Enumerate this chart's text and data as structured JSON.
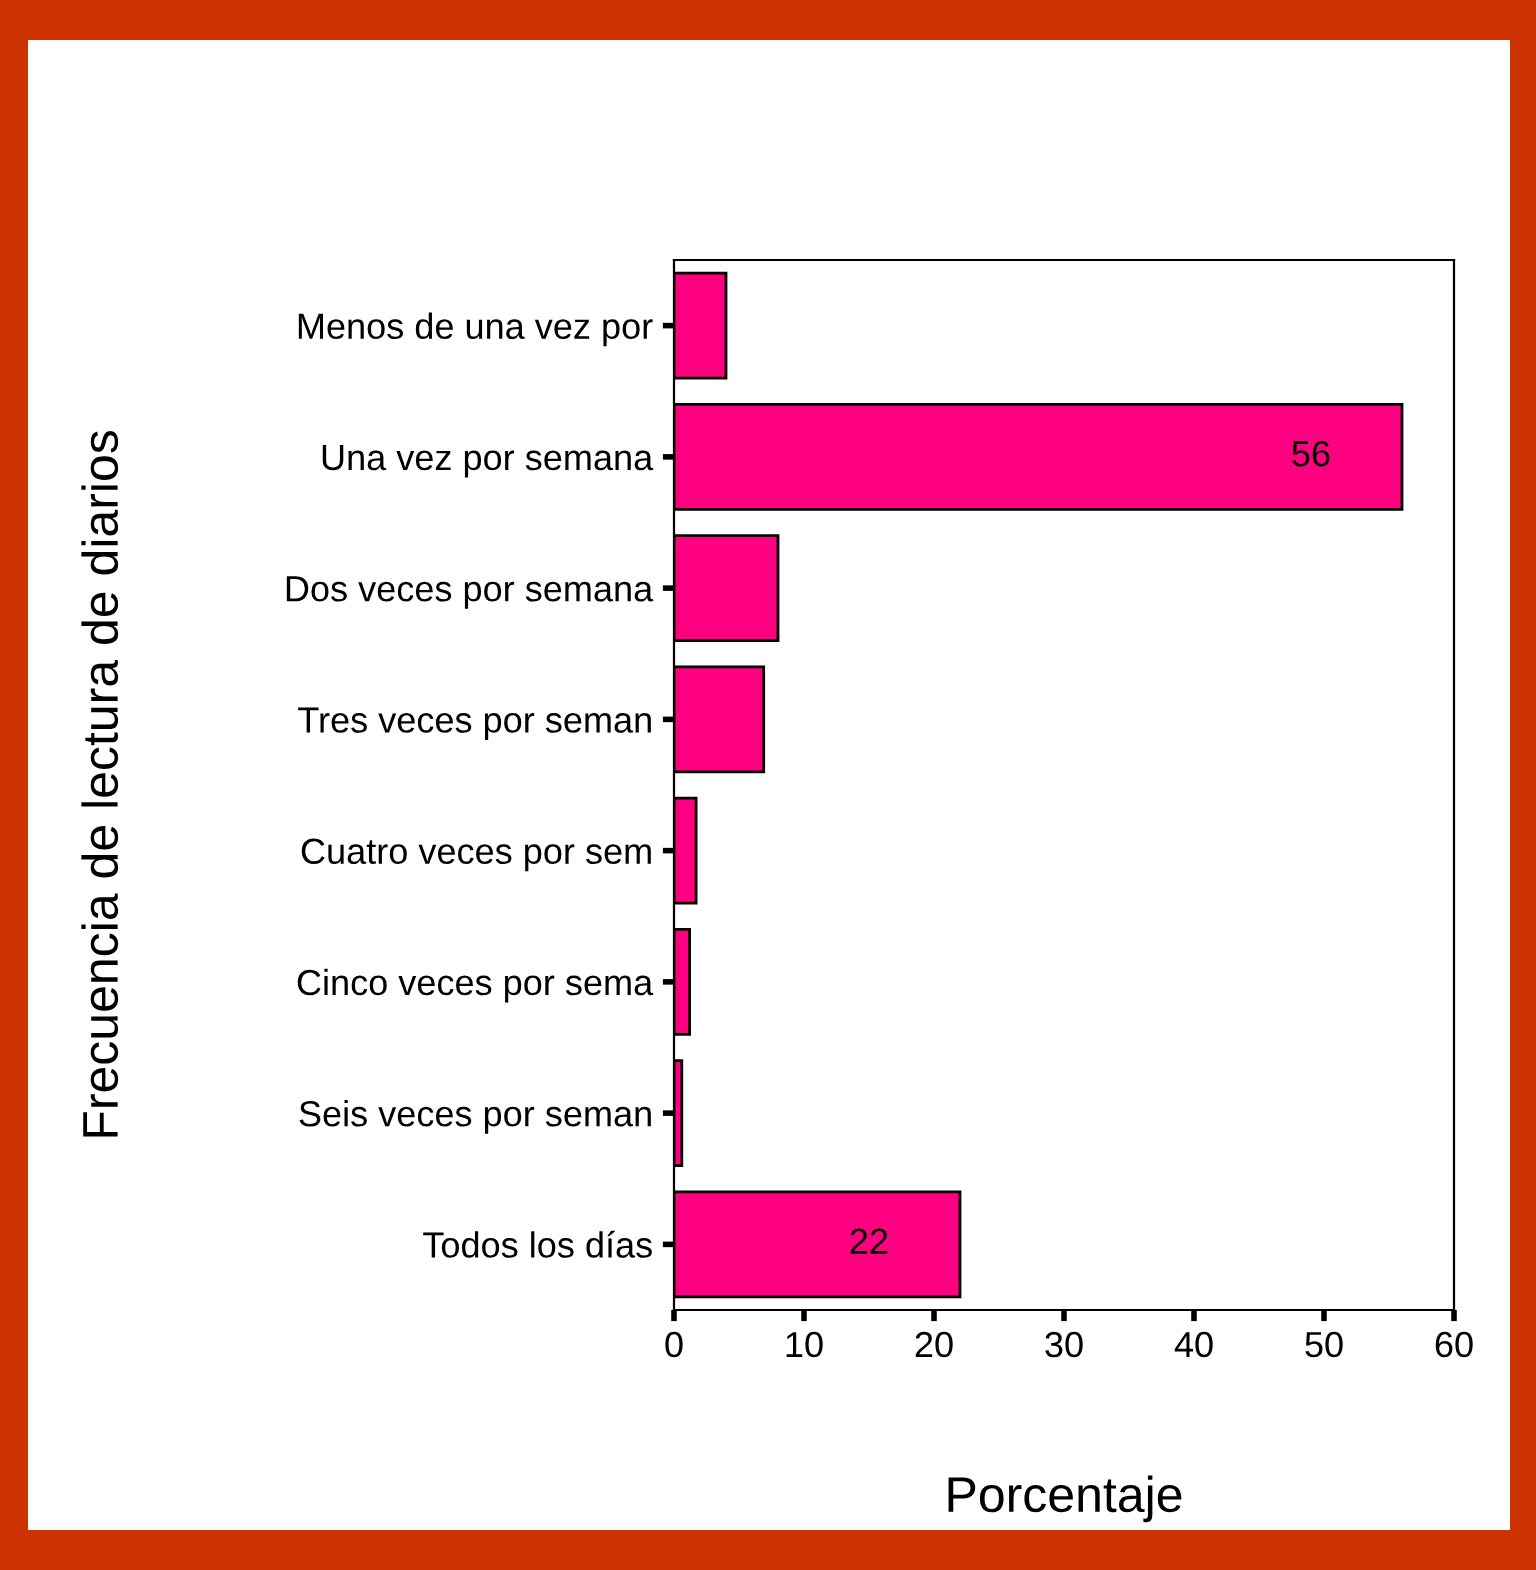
{
  "chart_data": {
    "type": "bar",
    "orientation": "horizontal",
    "xlabel": "Porcentaje",
    "ylabel": "Frecuencia de lectura de diarios",
    "categories": [
      "Menos de una vez por",
      "Una vez por semana",
      "Dos veces por semana",
      "Tres veces por seman",
      "Cuatro veces por sem",
      "Cinco veces por sema",
      "Seis veces por seman",
      "Todos los días"
    ],
    "values": [
      4.0,
      56,
      8.0,
      6.9,
      1.7,
      1.2,
      0.6,
      22
    ],
    "value_labels": [
      null,
      "56",
      null,
      null,
      null,
      null,
      null,
      "22"
    ],
    "color": "#ff0080",
    "xlim": [
      0,
      60
    ],
    "xticks": [
      0,
      10,
      20,
      30,
      40,
      50,
      60
    ],
    "grid": false,
    "legend": false
  }
}
